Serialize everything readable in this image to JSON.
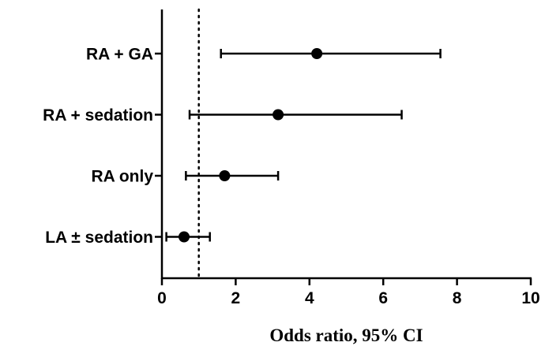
{
  "chart_data": {
    "type": "forest",
    "title": "",
    "xlabel": "Odds ratio, 95% CI",
    "ylabel": "",
    "xlim": [
      0,
      10
    ],
    "xticks": [
      0,
      2,
      4,
      6,
      8,
      10
    ],
    "reference_line": 1,
    "grid": false,
    "legend": "none",
    "colors": {
      "marker": "#000000",
      "axis": "#000000",
      "reference_line": "#000000"
    },
    "rows": [
      {
        "label": "RA + GA",
        "estimate": 4.2,
        "lower": 1.6,
        "upper": 7.55
      },
      {
        "label": "RA + sedation",
        "estimate": 3.15,
        "lower": 0.75,
        "upper": 6.5
      },
      {
        "label": "RA only",
        "estimate": 1.7,
        "lower": 0.65,
        "upper": 3.15
      },
      {
        "label": "LA ± sedation",
        "estimate": 0.6,
        "lower": 0.12,
        "upper": 1.3
      }
    ]
  }
}
